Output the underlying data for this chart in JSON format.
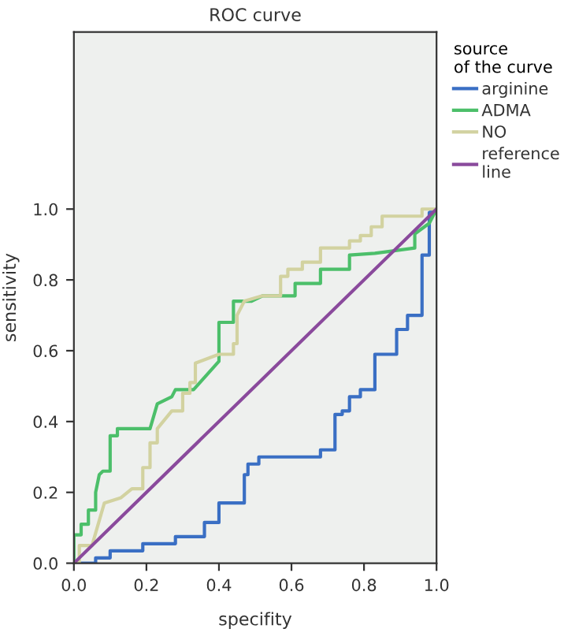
{
  "chart_data": {
    "type": "line",
    "title": "ROC curve",
    "xlabel": "specifity",
    "ylabel": "sensitivity",
    "legend_title": "source of the curve",
    "legend": "right",
    "grid": false,
    "marker": "none",
    "line_style": "solid",
    "xlim": [
      0,
      1
    ],
    "ylim": [
      0,
      1.5
    ],
    "xticks": [
      {
        "value": 0,
        "label": "0.0"
      },
      {
        "value": 0.2,
        "label": "0.2"
      },
      {
        "value": 0.4,
        "label": "0.4"
      },
      {
        "value": 0.6,
        "label": "0.6"
      },
      {
        "value": 0.8,
        "label": "0.8"
      },
      {
        "value": 1,
        "label": "1.0"
      }
    ],
    "yticks": [
      {
        "value": 0,
        "label": "0.0"
      },
      {
        "value": 0.2,
        "label": "0.2"
      },
      {
        "value": 0.4,
        "label": "0.4"
      },
      {
        "value": 0.6,
        "label": "0.6"
      },
      {
        "value": 0.8,
        "label": "0.8"
      },
      {
        "value": 1,
        "label": "1.0"
      }
    ],
    "series": [
      {
        "name": "arginine",
        "color": "#3a6fc4",
        "x": [
          0,
          0.06,
          0.06,
          0.1,
          0.1,
          0.19,
          0.19,
          0.28,
          0.28,
          0.36,
          0.36,
          0.4,
          0.4,
          0.47,
          0.47,
          0.48,
          0.48,
          0.51,
          0.51,
          0.68,
          0.68,
          0.72,
          0.72,
          0.74,
          0.74,
          0.76,
          0.76,
          0.79,
          0.79,
          0.83,
          0.83,
          0.89,
          0.89,
          0.92,
          0.92,
          0.96,
          0.96,
          0.98,
          0.98,
          1
        ],
        "values": [
          0,
          0,
          0.015,
          0.015,
          0.035,
          0.035,
          0.055,
          0.055,
          0.075,
          0.075,
          0.115,
          0.115,
          0.17,
          0.17,
          0.25,
          0.25,
          0.28,
          0.28,
          0.3,
          0.3,
          0.32,
          0.32,
          0.42,
          0.42,
          0.43,
          0.43,
          0.47,
          0.47,
          0.49,
          0.49,
          0.59,
          0.59,
          0.66,
          0.66,
          0.7,
          0.7,
          0.87,
          0.87,
          0.99,
          1
        ]
      },
      {
        "name": "ADMA",
        "color": "#4cbf6a",
        "x": [
          0,
          0,
          0.02,
          0.02,
          0.04,
          0.04,
          0.06,
          0.06,
          0.07,
          0.08,
          0.1,
          0.1,
          0.12,
          0.12,
          0.21,
          0.23,
          0.27,
          0.28,
          0.33,
          0.4,
          0.4,
          0.44,
          0.44,
          0.49,
          0.52,
          0.61,
          0.61,
          0.68,
          0.68,
          0.76,
          0.76,
          0.83,
          0.94,
          0.94,
          0.98,
          1
        ],
        "values": [
          0,
          0.08,
          0.08,
          0.11,
          0.11,
          0.15,
          0.15,
          0.2,
          0.25,
          0.26,
          0.26,
          0.36,
          0.36,
          0.38,
          0.38,
          0.45,
          0.47,
          0.49,
          0.49,
          0.57,
          0.68,
          0.68,
          0.74,
          0.74,
          0.755,
          0.755,
          0.79,
          0.79,
          0.83,
          0.83,
          0.87,
          0.875,
          0.89,
          0.93,
          0.96,
          1
        ]
      },
      {
        "name": "NO",
        "color": "#d2d2a0",
        "x": [
          0,
          0.015,
          0.015,
          0.05,
          0.05,
          0.084,
          0.13,
          0.13,
          0.16,
          0.19,
          0.19,
          0.21,
          0.21,
          0.23,
          0.23,
          0.27,
          0.3,
          0.3,
          0.32,
          0.32,
          0.335,
          0.335,
          0.4,
          0.44,
          0.44,
          0.45,
          0.45,
          0.47,
          0.52,
          0.57,
          0.57,
          0.59,
          0.59,
          0.63,
          0.63,
          0.68,
          0.68,
          0.76,
          0.76,
          0.79,
          0.79,
          0.82,
          0.82,
          0.85,
          0.85,
          0.96,
          0.96,
          1
        ],
        "values": [
          0,
          0,
          0.05,
          0.05,
          0.05,
          0.17,
          0.185,
          0.185,
          0.21,
          0.21,
          0.27,
          0.27,
          0.34,
          0.34,
          0.38,
          0.43,
          0.43,
          0.48,
          0.48,
          0.51,
          0.51,
          0.565,
          0.59,
          0.59,
          0.62,
          0.62,
          0.7,
          0.74,
          0.755,
          0.755,
          0.81,
          0.81,
          0.83,
          0.83,
          0.85,
          0.85,
          0.89,
          0.89,
          0.91,
          0.91,
          0.925,
          0.925,
          0.95,
          0.95,
          0.98,
          0.98,
          1,
          1
        ]
      },
      {
        "name": "reference line",
        "color": "#8a4a9c",
        "x": [
          0,
          1
        ],
        "values": [
          0,
          1
        ]
      }
    ]
  }
}
